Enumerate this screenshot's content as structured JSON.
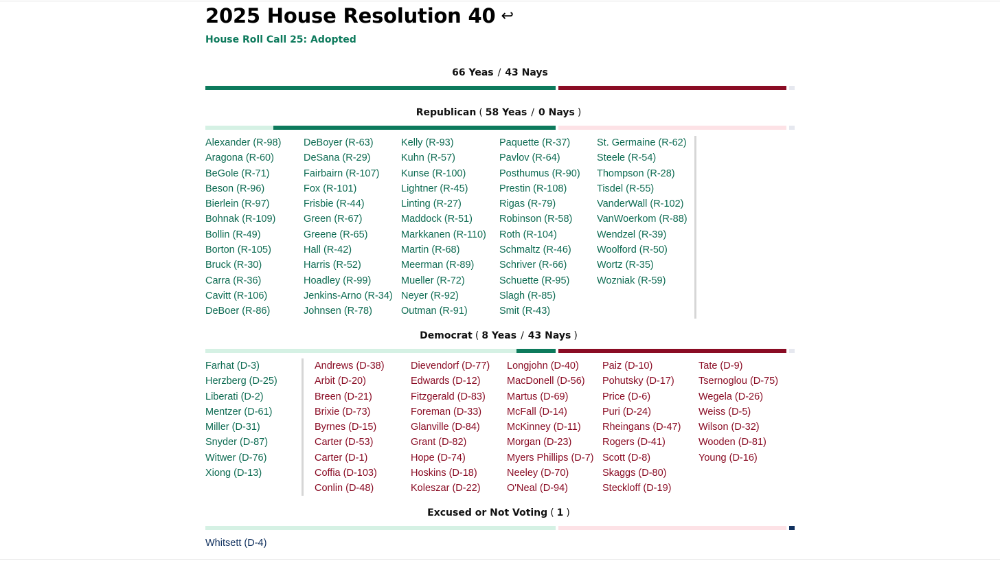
{
  "title": "2025 House Resolution 40",
  "return_glyph": "↩",
  "subtitle": "House Roll Call 25: Adopted",
  "overall": {
    "yeas": "66 Yeas",
    "slash": "/",
    "nays": "43 Nays"
  },
  "republican": {
    "label": "Republican",
    "open": "(",
    "close": ")",
    "slash": "/",
    "yeas": "58 Yeas",
    "nays": "0 Nays",
    "yea_members": [
      "Alexander (R-98)",
      "Aragona (R-60)",
      "BeGole (R-71)",
      "Beson (R-96)",
      "Bierlein (R-97)",
      "Bohnak (R-109)",
      "Bollin (R-49)",
      "Borton (R-105)",
      "Bruck (R-30)",
      "Carra (R-36)",
      "Cavitt (R-106)",
      "DeBoer (R-86)",
      "DeBoyer (R-63)",
      "DeSana (R-29)",
      "Fairbairn (R-107)",
      "Fox (R-101)",
      "Frisbie (R-44)",
      "Green (R-67)",
      "Greene (R-65)",
      "Hall (R-42)",
      "Harris (R-52)",
      "Hoadley (R-99)",
      "Jenkins-Arno (R-34)",
      "Johnsen (R-78)",
      "Kelly (R-93)",
      "Kuhn (R-57)",
      "Kunse (R-100)",
      "Lightner (R-45)",
      "Linting (R-27)",
      "Maddock (R-51)",
      "Markkanen (R-110)",
      "Martin (R-68)",
      "Meerman (R-89)",
      "Mueller (R-72)",
      "Neyer (R-92)",
      "Outman (R-91)",
      "Paquette (R-37)",
      "Pavlov (R-64)",
      "Posthumus (R-90)",
      "Prestin (R-108)",
      "Rigas (R-79)",
      "Robinson (R-58)",
      "Roth (R-104)",
      "Schmaltz (R-46)",
      "Schriver (R-66)",
      "Schuette (R-95)",
      "Slagh (R-85)",
      "Smit (R-43)",
      "St. Germaine (R-62)",
      "Steele (R-54)",
      "Thompson (R-28)",
      "Tisdel (R-55)",
      "VanderWall (R-102)",
      "VanWoerkom (R-88)",
      "Wendzel (R-39)",
      "Woolford (R-50)",
      "Wortz (R-35)",
      "Wozniak (R-59)"
    ],
    "nay_members": []
  },
  "democrat": {
    "label": "Democrat",
    "open": "(",
    "close": ")",
    "slash": "/",
    "yeas": "8 Yeas",
    "nays": "43 Nays",
    "yea_members": [
      "Farhat (D-3)",
      "Herzberg (D-25)",
      "Liberati (D-2)",
      "Mentzer (D-61)",
      "Miller (D-31)",
      "Snyder (D-87)",
      "Witwer (D-76)",
      "Xiong (D-13)"
    ],
    "nay_members": [
      "Andrews (D-38)",
      "Arbit (D-20)",
      "Breen (D-21)",
      "Brixie (D-73)",
      "Byrnes (D-15)",
      "Carter (D-53)",
      "Carter (D-1)",
      "Coffia (D-103)",
      "Conlin (D-48)",
      "Dievendorf (D-77)",
      "Edwards (D-12)",
      "Fitzgerald (D-83)",
      "Foreman (D-33)",
      "Glanville (D-84)",
      "Grant (D-82)",
      "Hope (D-74)",
      "Hoskins (D-18)",
      "Koleszar (D-22)",
      "Longjohn (D-40)",
      "MacDonell (D-56)",
      "Martus (D-69)",
      "McFall (D-14)",
      "McKinney (D-11)",
      "Morgan (D-23)",
      "Myers Phillips (D-7)",
      "Neeley (D-70)",
      "O'Neal (D-94)",
      "Paiz (D-10)",
      "Pohutsky (D-17)",
      "Price (D-6)",
      "Puri (D-24)",
      "Rheingans (D-47)",
      "Rogers (D-41)",
      "Scott (D-8)",
      "Skaggs (D-80)",
      "Steckloff (D-19)",
      "Tate (D-9)",
      "Tsernoglou (D-75)",
      "Wegela (D-26)",
      "Weiss (D-5)",
      "Wilson (D-32)",
      "Wooden (D-81)",
      "Young (D-16)"
    ]
  },
  "not_voting": {
    "label": "Excused or Not Voting",
    "open": "(",
    "close": ")",
    "count": "1",
    "members": [
      "Whitsett (D-4)"
    ]
  },
  "bars": {
    "total_seats": 110,
    "overall": {
      "yeas": 66,
      "nays": 43,
      "not_voting": 1
    },
    "republican": {
      "seats": 58,
      "yeas": 58,
      "nays": 0
    },
    "democrat": {
      "seats": 51,
      "yeas": 8,
      "nays": 43
    },
    "not_voting": {
      "count": 1
    }
  },
  "colors": {
    "yea": "#0d7a5c",
    "nay": "#8a0c24",
    "not_voting": "#10305e",
    "yea_light": "#d5f1e4",
    "nay_light": "#fde2e6",
    "nv_light": "#e6e8ef"
  }
}
